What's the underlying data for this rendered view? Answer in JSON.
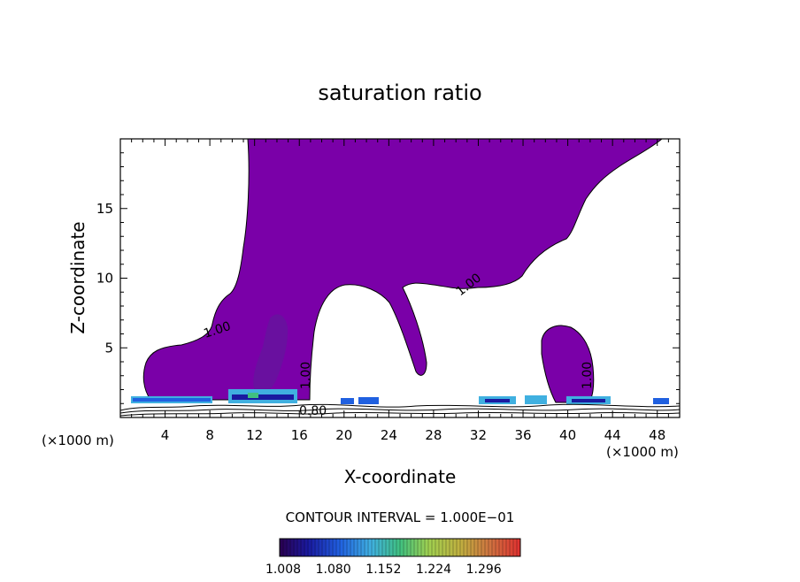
{
  "chart_data": {
    "type": "heatmap",
    "title": "saturation ratio",
    "xlabel": "X-coordinate",
    "ylabel": "Z-coordinate",
    "x_unit_left": "(×1000 m)",
    "x_unit_right": "(×1000 m)",
    "xlim": [
      0,
      50
    ],
    "ylim": [
      0,
      20
    ],
    "x_ticks": [
      4,
      8,
      12,
      16,
      20,
      24,
      28,
      32,
      36,
      40,
      44,
      48
    ],
    "y_ticks": [
      5,
      10,
      15
    ],
    "contour_interval_text": "CONTOUR INTERVAL = 1.000E−01",
    "contour_labels": [
      "1.00",
      "1.00",
      "1.00",
      "1.00",
      "0.80"
    ],
    "colorbar": {
      "ticks": [
        "1.008",
        "1.080",
        "1.152",
        "1.224",
        "1.296"
      ],
      "colors": [
        "#2a0050",
        "#1a1aa0",
        "#2060e0",
        "#40b0e0",
        "#40c080",
        "#80d060",
        "#c0c040",
        "#d08040",
        "#e05040",
        "#e03030"
      ]
    },
    "fill_color": "#7a00a8",
    "dominant_value": 1.008
  }
}
